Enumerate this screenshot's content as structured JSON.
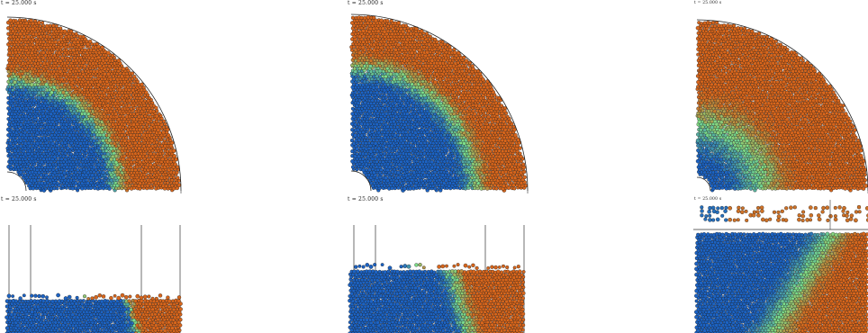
{
  "panels": [
    {
      "id": "top-left",
      "label": "t = 25.000 s",
      "view": "quarter"
    },
    {
      "id": "top-middle",
      "label": "t = 25.000 s",
      "view": "quarter"
    },
    {
      "id": "top-right",
      "label": "t = 25.000 s",
      "view": "quarter"
    },
    {
      "id": "bottom-left",
      "label": "t = 25.000 s",
      "view": "side"
    },
    {
      "id": "bottom-middle",
      "label": "t = 25.000 s",
      "view": "side"
    },
    {
      "id": "bottom-right",
      "label": "t = 25.000 s",
      "view": "side"
    }
  ],
  "colors": {
    "blue": "#1c63c4",
    "green": "#7ee08a",
    "orange": "#d8661c",
    "outline": "#1a1a1a"
  }
}
